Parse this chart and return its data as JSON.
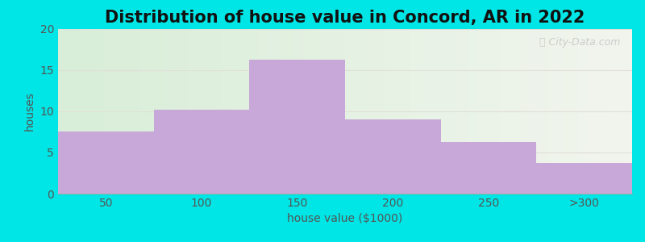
{
  "title": "Distribution of house value in Concord, AR in 2022",
  "xlabel": "house value ($1000)",
  "ylabel": "houses",
  "categories": [
    "50",
    "100",
    "150",
    "200",
    "250",
    ">300"
  ],
  "values": [
    7.5,
    10.2,
    16.3,
    9.0,
    6.3,
    3.7
  ],
  "bar_color": "#C8A8D8",
  "bar_edgecolor": "none",
  "ylim": [
    0,
    20
  ],
  "yticks": [
    0,
    5,
    10,
    15,
    20
  ],
  "background_outer": "#00E5E5",
  "background_inner_left": "#D8EED8",
  "background_inner_right": "#F2F5EE",
  "grid_color": "#E0E0D8",
  "title_fontsize": 15,
  "label_fontsize": 10,
  "tick_fontsize": 10,
  "bar_width": 1.0
}
